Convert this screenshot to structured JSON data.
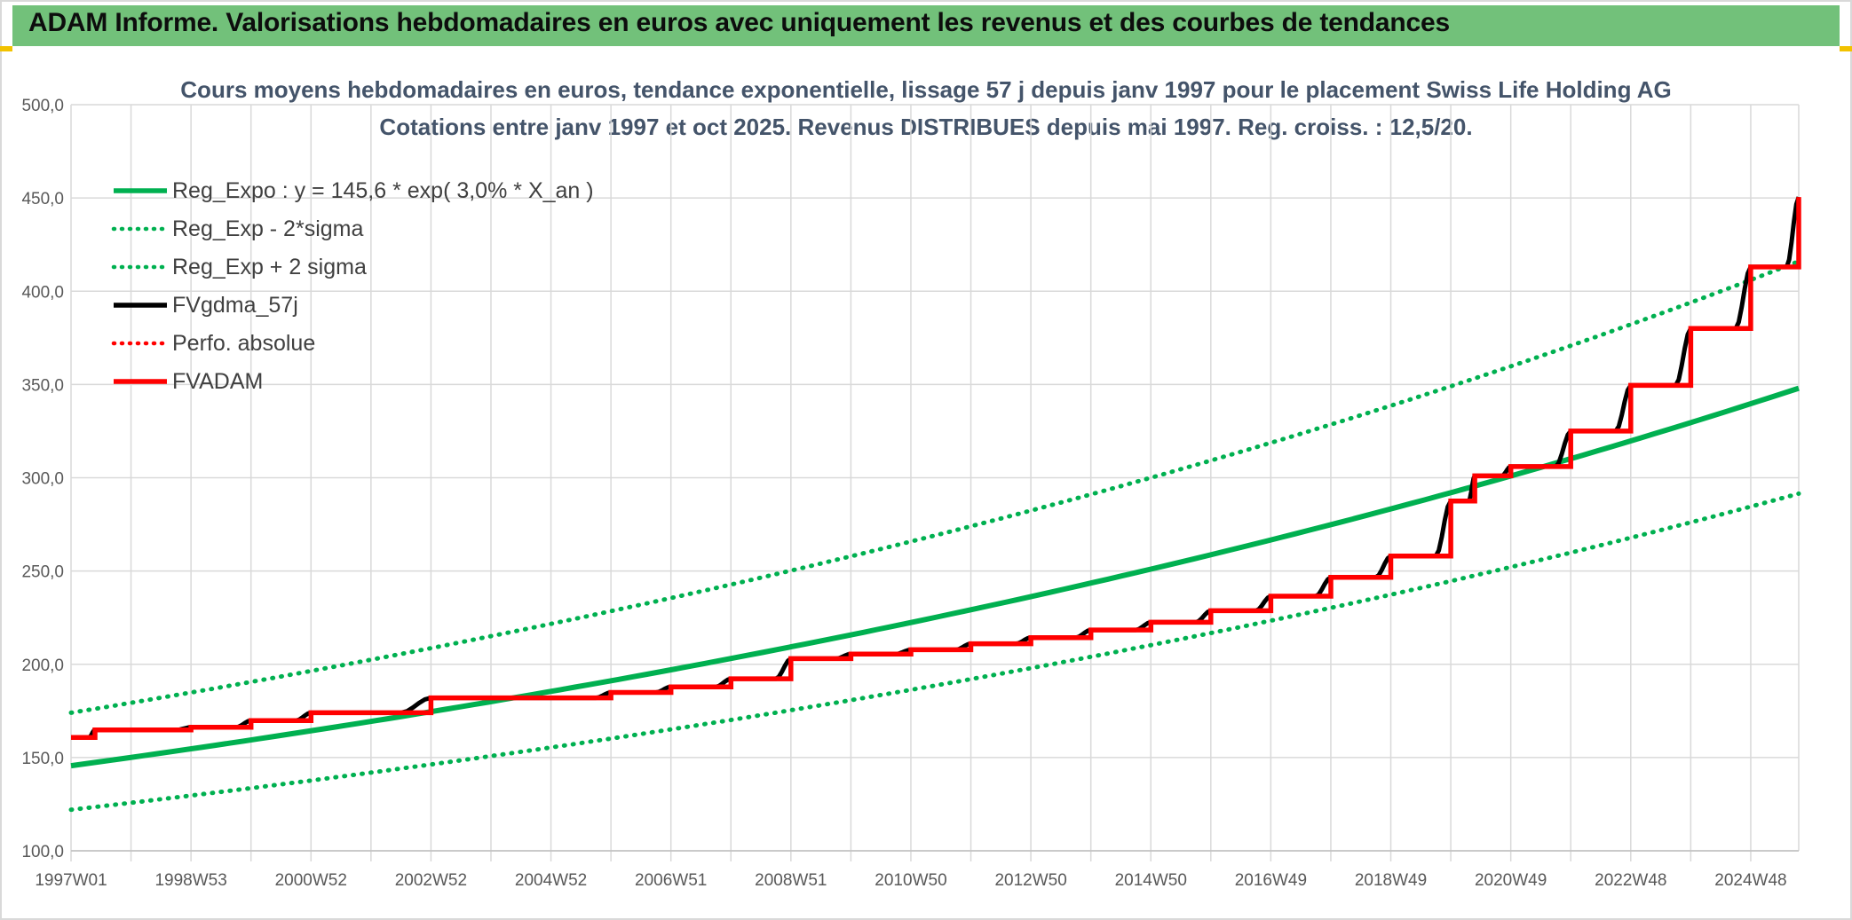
{
  "header": {
    "title": "ADAM Informe. Valorisations hebdomadaires en euros avec uniquement les revenus et des courbes de tendances"
  },
  "colors": {
    "header_bg": "#72c17a",
    "accent": "#f2c200",
    "reg_green": "#00b050",
    "fv_black": "#000000",
    "adam_red": "#ff0000",
    "title_text": "#44546a",
    "grid": "#d9d9d9"
  },
  "chart_data": {
    "type": "line",
    "title": "Cours moyens hebdomadaires en euros, tendance exponentielle, lissage 57 j depuis janv 1997 pour le placement Swiss Life Holding AG",
    "subtitle": "Cotations entre janv 1997 et oct 2025. Revenus DISTRIBUES depuis mai 1997. Reg. croiss. : 12,5/20.",
    "xlabel": "",
    "ylabel": "",
    "ylim": [
      100,
      500
    ],
    "xlim": [
      1997.0,
      2025.8
    ],
    "y_ticks": [
      "500,0",
      "450,0",
      "400,0",
      "350,0",
      "300,0",
      "250,0",
      "200,0",
      "150,0",
      "100,0"
    ],
    "y_tick_values": [
      500,
      450,
      400,
      350,
      300,
      250,
      200,
      150,
      100
    ],
    "x_ticks": [
      "1997W01",
      "1998W53",
      "2000W52",
      "2002W52",
      "2004W52",
      "2006W51",
      "2008W51",
      "2010W50",
      "2012W50",
      "2014W50",
      "2016W49",
      "2018W49",
      "2020W49",
      "2022W48",
      "2024W48"
    ],
    "x_tick_values": [
      1997.0,
      1999.0,
      2001.0,
      2003.0,
      2005.0,
      2007.0,
      2009.0,
      2011.0,
      2013.0,
      2015.0,
      2017.0,
      2019.0,
      2021.0,
      2023.0,
      2025.0
    ],
    "grid": true,
    "legend_position": "top-left",
    "legend": [
      {
        "label": "Reg_Expo : y = 145,6 * exp( 3,0% *  X_an )",
        "color": "#00b050",
        "style": "solid"
      },
      {
        "label": "Reg_Exp - 2*sigma",
        "color": "#00b050",
        "style": "dotted"
      },
      {
        "label": "Reg_Exp + 2 sigma",
        "color": "#00b050",
        "style": "dotted"
      },
      {
        "label": "FVgdma_57j",
        "color": "#000000",
        "style": "solid"
      },
      {
        "label": "Perfo. absolue",
        "color": "#ff0000",
        "style": "dotted"
      },
      {
        "label": "FVADAM",
        "color": "#ff0000",
        "style": "solid"
      }
    ],
    "series": [
      {
        "name": "Reg_Expo : y = 145,6 * exp( 3,0% *  X_an )",
        "x": [
          1997.0,
          2001.0,
          2005.0,
          2009.0,
          2013.0,
          2017.0,
          2021.0,
          2025.8
        ],
        "y": [
          145.6,
          164.1,
          185.0,
          208.4,
          234.9,
          264.7,
          298.3,
          348.0
        ]
      },
      {
        "name": "Reg_Exp - 2*sigma",
        "x": [
          1997.0,
          2001.0,
          2005.0,
          2009.0,
          2013.0,
          2017.0,
          2021.0,
          2025.8
        ],
        "y": [
          122.0,
          137.5,
          155.0,
          174.6,
          196.8,
          221.8,
          250.0,
          291.5
        ]
      },
      {
        "name": "Reg_Exp + 2 sigma",
        "x": [
          1997.0,
          2001.0,
          2005.0,
          2009.0,
          2013.0,
          2017.0,
          2021.0,
          2025.8
        ],
        "y": [
          174.0,
          196.1,
          221.0,
          249.1,
          280.7,
          316.3,
          356.5,
          416.0
        ]
      },
      {
        "name": "FVgdma_57j",
        "x": [
          1997.0,
          1997.5,
          2006.5,
          2008.5,
          2010.5,
          2012.5,
          2014.5,
          2016.5,
          2018.5,
          2019.5,
          2020.5,
          2021.5,
          2022.5,
          2023.5,
          2024.5,
          2025.8
        ],
        "y": [
          160.8,
          164.8,
          188.0,
          203.0,
          207.5,
          214.3,
          222.5,
          236.5,
          258.0,
          287.5,
          306.0,
          325.0,
          349.5,
          380.0,
          413.0,
          450.5
        ]
      },
      {
        "name": "Perfo. absolue",
        "x": [],
        "y": []
      },
      {
        "name": "FVADAM",
        "x": [
          1997.0,
          1997.4,
          1998.0,
          1999.0,
          2000.0,
          2001.0,
          2003.0,
          2005.0,
          2006.0,
          2007.0,
          2008.0,
          2009.0,
          2010.0,
          2011.0,
          2012.0,
          2013.0,
          2014.0,
          2015.0,
          2016.0,
          2017.0,
          2018.0,
          2019.0,
          2020.0,
          2020.4,
          2021.0,
          2022.0,
          2023.0,
          2024.0,
          2025.0,
          2025.8
        ],
        "y": [
          160.8,
          164.8,
          164.8,
          166.2,
          169.8,
          174.0,
          182.0,
          182.0,
          184.9,
          187.9,
          192.2,
          203.0,
          205.5,
          207.8,
          211.0,
          214.3,
          218.4,
          222.5,
          228.7,
          236.5,
          246.6,
          258.0,
          287.5,
          301.0,
          306.0,
          325.0,
          349.5,
          380.0,
          413.0,
          450.5
        ]
      }
    ]
  }
}
